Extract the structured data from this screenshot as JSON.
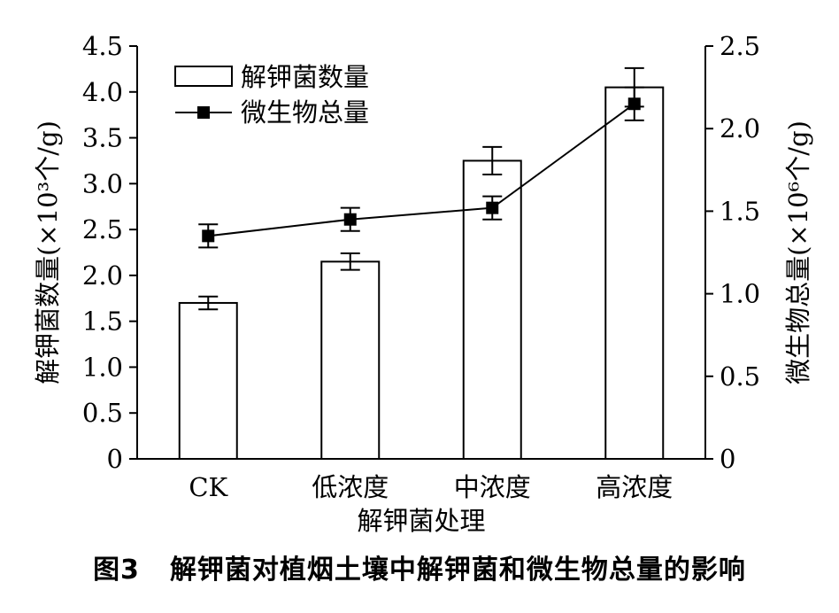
{
  "figure": {
    "caption_number": "图3",
    "caption_text": "解钾菌对植烟土壤中解钾菌和微生物总量的影响"
  },
  "chart_data": {
    "type": "bar+line",
    "categories": [
      "CK",
      "低浓度",
      "中浓度",
      "高浓度"
    ],
    "xlabel": "解钾菌处理",
    "left_axis": {
      "label": "解钾菌数量(×10³个/g)",
      "range": [
        0,
        4.5
      ],
      "ticks": [
        0,
        0.5,
        1.0,
        1.5,
        2.0,
        2.5,
        3.0,
        3.5,
        4.0,
        4.5
      ],
      "tick_labels": [
        "0",
        "0.5",
        "1.0",
        "1.5",
        "2.0",
        "2.5",
        "3.0",
        "3.5",
        "4.0",
        "4.5"
      ]
    },
    "right_axis": {
      "label": "微生物总量(×10⁶个/g)",
      "range": [
        0,
        2.5
      ],
      "ticks": [
        0,
        0.5,
        1.0,
        1.5,
        2.0,
        2.5
      ],
      "tick_labels": [
        "0",
        "0.5",
        "1.0",
        "1.5",
        "2.0",
        "2.5"
      ]
    },
    "series": [
      {
        "name": "解钾菌数量",
        "kind": "bar",
        "axis": "left",
        "values": [
          1.7,
          2.15,
          3.25,
          4.05
        ],
        "errors": [
          0.07,
          0.09,
          0.15,
          0.21
        ]
      },
      {
        "name": "微生物总量",
        "kind": "line",
        "axis": "right",
        "values": [
          1.35,
          1.45,
          1.52,
          2.15
        ],
        "errors": [
          0.07,
          0.07,
          0.07,
          0.1
        ]
      }
    ],
    "legend": "top-left"
  }
}
